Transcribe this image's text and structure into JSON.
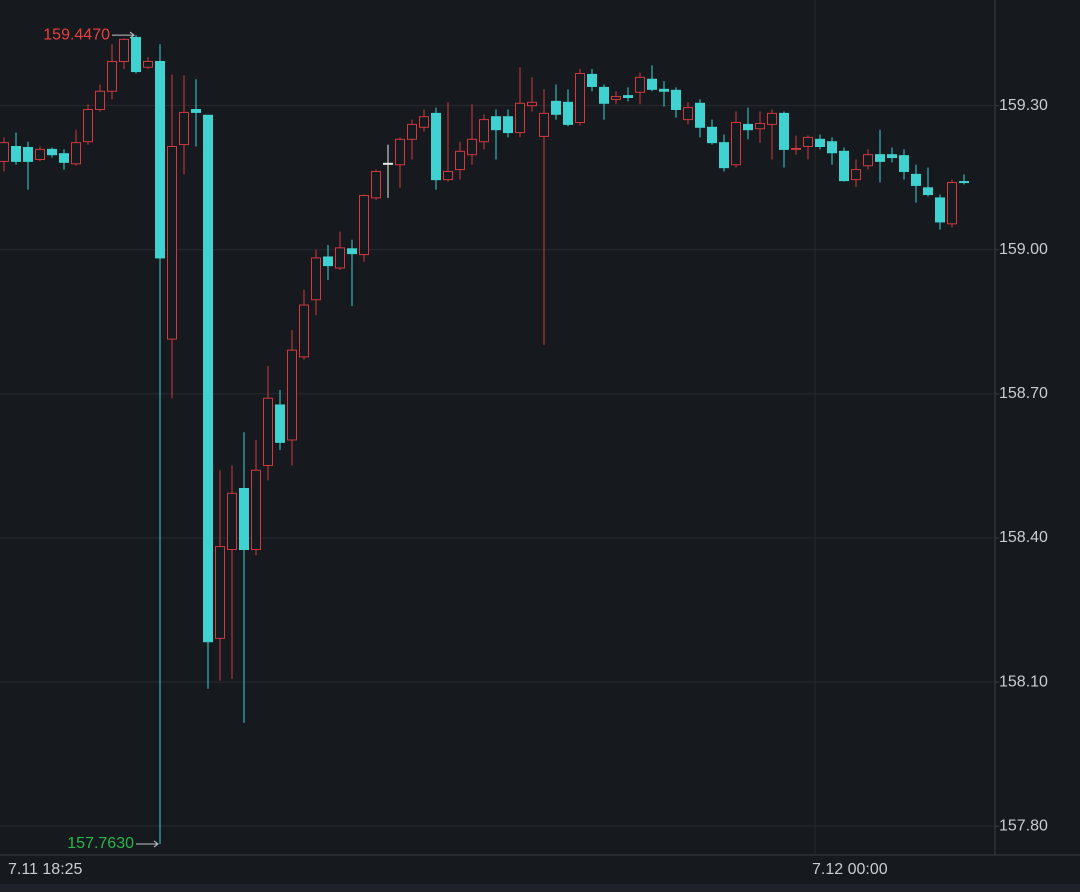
{
  "chart_data": {
    "type": "candlestick",
    "categories": [
      "7.11 18:25",
      null,
      null,
      null,
      null,
      null,
      null,
      null,
      null,
      null,
      null,
      null,
      null,
      null,
      null,
      null,
      null,
      null,
      null,
      null,
      null,
      null,
      null,
      null,
      null,
      null,
      null,
      null,
      null,
      null,
      null,
      null,
      null,
      null,
      null,
      null,
      null,
      null,
      null,
      null,
      null,
      null,
      null,
      null,
      null,
      null,
      null,
      null,
      null,
      null,
      null,
      null,
      null,
      null,
      null,
      null,
      null,
      null,
      null,
      null,
      null,
      null,
      null,
      null,
      null,
      null,
      null,
      "7.12 00:00",
      null,
      null,
      null,
      null,
      null,
      null,
      null,
      null,
      null,
      null,
      null,
      null,
      null
    ],
    "series": [
      {
        "up_color": "#d0393d",
        "down_color": "#3fd2d0",
        "open": [
          159.184,
          159.215,
          159.213,
          159.188,
          159.209,
          159.2,
          159.179,
          159.225,
          159.292,
          159.33,
          159.392,
          159.442,
          159.38,
          159.392,
          158.814,
          159.219,
          159.292,
          159.28,
          158.191,
          158.376,
          158.503,
          158.376,
          158.551,
          158.677,
          158.604,
          158.777,
          158.896,
          158.985,
          158.962,
          159.002,
          158.99,
          159.108,
          159.18,
          159.177,
          159.23,
          159.255,
          159.284,
          159.146,
          159.167,
          159.198,
          159.225,
          159.277,
          159.277,
          159.244,
          159.3,
          159.236,
          159.309,
          159.307,
          159.265,
          159.365,
          159.338,
          159.313,
          159.321,
          159.328,
          159.355,
          159.334,
          159.332,
          159.271,
          159.305,
          159.255,
          159.223,
          159.177,
          159.261,
          159.252,
          159.261,
          159.284,
          159.209,
          159.215,
          159.23,
          159.225,
          159.205,
          159.146,
          159.175,
          159.198,
          159.198,
          159.196,
          159.157,
          159.129,
          159.108,
          159.054,
          159.142
        ],
        "high": [
          159.234,
          159.244,
          159.225,
          159.215,
          159.213,
          159.209,
          159.25,
          159.303,
          159.344,
          159.428,
          159.44,
          159.447,
          159.401,
          159.428,
          159.365,
          159.363,
          159.355,
          159.28,
          158.541,
          158.551,
          158.62,
          158.604,
          158.758,
          158.708,
          158.833,
          158.917,
          159.0,
          159.01,
          159.038,
          159.021,
          159.115,
          159.167,
          159.219,
          159.234,
          159.271,
          159.292,
          159.296,
          159.307,
          159.225,
          159.303,
          159.282,
          159.292,
          159.292,
          159.38,
          159.359,
          159.334,
          159.344,
          159.334,
          159.376,
          159.376,
          159.344,
          159.33,
          159.338,
          159.369,
          159.384,
          159.351,
          159.338,
          159.307,
          159.313,
          159.271,
          159.24,
          159.288,
          159.296,
          159.288,
          159.292,
          159.288,
          159.238,
          159.238,
          159.24,
          159.234,
          159.213,
          159.188,
          159.209,
          159.25,
          159.213,
          159.209,
          159.177,
          159.171,
          159.115,
          159.146,
          159.157
        ],
        "low": [
          159.163,
          159.177,
          159.125,
          159.184,
          159.192,
          159.167,
          159.175,
          159.219,
          159.288,
          159.313,
          159.376,
          159.367,
          159.376,
          157.763,
          158.691,
          159.157,
          159.215,
          158.086,
          158.103,
          158.107,
          158.015,
          158.364,
          158.52,
          158.583,
          158.551,
          158.771,
          158.864,
          158.937,
          158.958,
          158.883,
          158.975,
          159.104,
          159.108,
          159.129,
          159.188,
          159.246,
          159.125,
          159.142,
          159.146,
          159.177,
          159.209,
          159.188,
          159.234,
          159.234,
          159.288,
          158.802,
          159.271,
          159.257,
          159.259,
          159.33,
          159.271,
          159.303,
          159.309,
          159.303,
          159.33,
          159.298,
          159.275,
          159.261,
          159.234,
          159.219,
          159.163,
          159.171,
          159.23,
          159.223,
          159.188,
          159.171,
          159.198,
          159.188,
          159.209,
          159.177,
          159.142,
          159.131,
          159.167,
          159.14,
          159.182,
          159.146,
          159.098,
          159.111,
          159.042,
          159.046,
          159.136
        ],
        "close": [
          159.223,
          159.184,
          159.184,
          159.209,
          159.198,
          159.182,
          159.223,
          159.292,
          159.33,
          159.392,
          159.438,
          159.371,
          159.392,
          158.983,
          159.215,
          159.286,
          159.286,
          158.184,
          158.382,
          158.493,
          158.376,
          158.541,
          158.691,
          158.599,
          158.791,
          158.885,
          158.983,
          158.967,
          159.004,
          158.992,
          159.113,
          159.163,
          159.18,
          159.23,
          159.261,
          159.277,
          159.146,
          159.163,
          159.205,
          159.23,
          159.271,
          159.25,
          159.244,
          159.305,
          159.307,
          159.284,
          159.282,
          159.261,
          159.367,
          159.34,
          159.305,
          159.319,
          159.317,
          159.359,
          159.334,
          159.33,
          159.292,
          159.296,
          159.255,
          159.223,
          159.171,
          159.265,
          159.25,
          159.263,
          159.284,
          159.209,
          159.211,
          159.234,
          159.215,
          159.202,
          159.144,
          159.167,
          159.198,
          159.184,
          159.192,
          159.163,
          159.134,
          159.115,
          159.058,
          159.14,
          159.14
        ]
      }
    ],
    "annotations": [
      {
        "value": 159.447,
        "label": "159.4470",
        "color": "#e8403f"
      },
      {
        "value": 157.763,
        "label": "157.7630",
        "color": "#29b64a"
      }
    ],
    "ylim": [
      157.74,
      159.52
    ],
    "yticks": [
      {
        "value": 157.8,
        "label": "157.80"
      },
      {
        "value": 158.1,
        "label": "158.10"
      },
      {
        "value": 158.4,
        "label": "158.40"
      },
      {
        "value": 158.7,
        "label": "158.70"
      },
      {
        "value": 159.0,
        "label": "159.00"
      },
      {
        "value": 159.3,
        "label": "159.30"
      }
    ],
    "grid": true
  }
}
